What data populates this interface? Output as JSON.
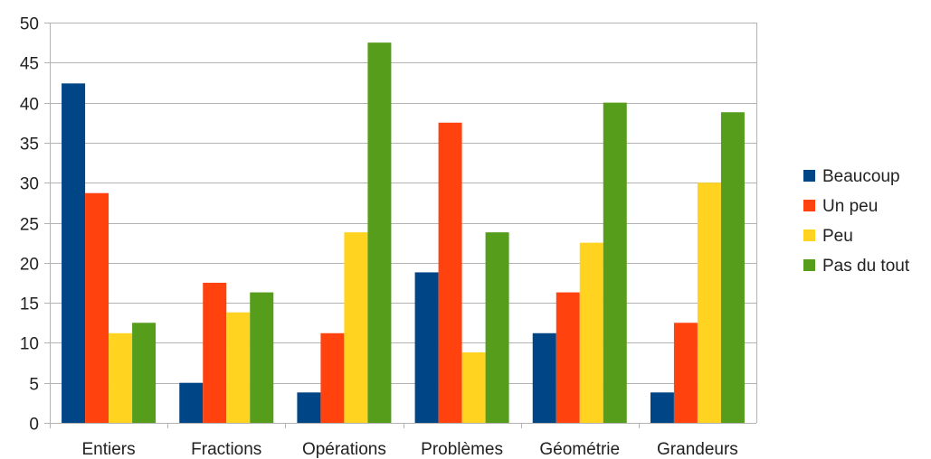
{
  "chart_data": {
    "type": "bar",
    "categories": [
      "Entiers",
      "Fractions",
      "Opérations",
      "Problèmes",
      "Géométrie",
      "Grandeurs"
    ],
    "series": [
      {
        "name": "Beaucoup",
        "color": "#004586",
        "values": [
          42.4,
          5.0,
          3.8,
          18.8,
          11.2,
          3.8
        ]
      },
      {
        "name": "Un peu",
        "color": "#FF420E",
        "values": [
          28.7,
          17.5,
          11.2,
          37.5,
          16.3,
          12.5
        ]
      },
      {
        "name": "Peu",
        "color": "#FFD320",
        "values": [
          11.2,
          13.8,
          23.8,
          8.8,
          22.5,
          30.0
        ]
      },
      {
        "name": "Pas du tout",
        "color": "#579D1C",
        "values": [
          12.5,
          16.3,
          47.5,
          23.8,
          40.0,
          38.8
        ]
      }
    ],
    "y_ticks": [
      0,
      5,
      10,
      15,
      20,
      25,
      30,
      35,
      40,
      45,
      50
    ],
    "ylim": [
      0,
      50
    ],
    "grid": true,
    "legend_position": "right",
    "title": "",
    "xlabel": "",
    "ylabel": ""
  }
}
